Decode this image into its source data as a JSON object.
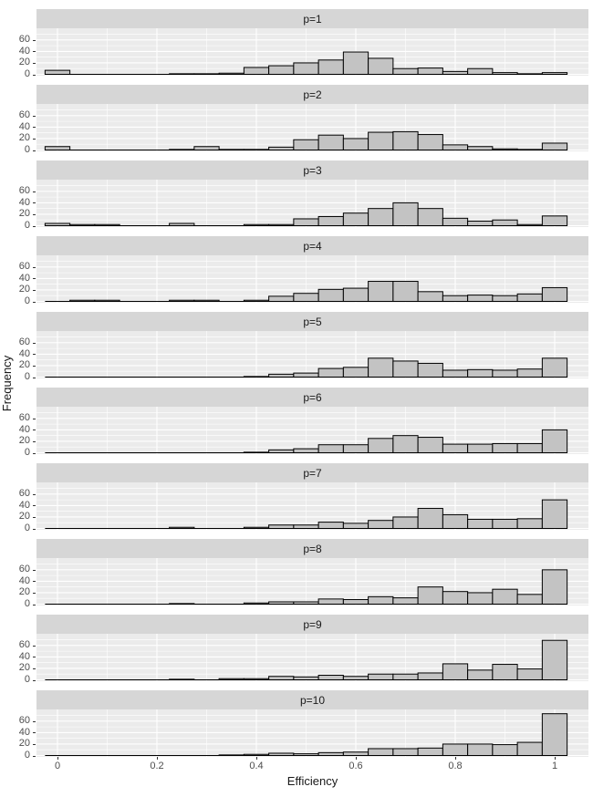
{
  "figure": {
    "title_x": "Efficiency",
    "title_y": "Frequency"
  },
  "axes": {
    "x_ticks": [
      {
        "label": "0",
        "value": 0
      },
      {
        "label": "0.2",
        "value": 0.2
      },
      {
        "label": "0.4",
        "value": 0.4
      },
      {
        "label": "0.6",
        "value": 0.6
      },
      {
        "label": "0.8",
        "value": 0.8
      },
      {
        "label": "1",
        "value": 1
      }
    ],
    "y_ticks": [
      {
        "label": "0",
        "value": 0
      },
      {
        "label": "20",
        "value": 20
      },
      {
        "label": "40",
        "value": 40
      },
      {
        "label": "60",
        "value": 60
      }
    ],
    "y_minor_values": [
      10,
      30,
      50,
      70
    ],
    "x_minor_values": [
      0.1,
      0.3,
      0.5,
      0.7,
      0.9
    ]
  },
  "colors": {
    "panel_background": "#EBEBEB",
    "strip_background": "#D6D6D6",
    "gridline": "#FFFFFF",
    "bar_fill": "#C3C3C3",
    "bar_stroke": "#000000",
    "axis_text": "#4D4D4D",
    "title_text": "#1A1A1A"
  },
  "chart_data": {
    "type": "bar",
    "subtype": "faceted-histogram",
    "xlabel": "Efficiency",
    "ylabel": "Frequency",
    "x_range": [
      -0.025,
      1.025
    ],
    "ylim": [
      0,
      79
    ],
    "bin_width": 0.05,
    "bin_centers": [
      0,
      0.05,
      0.1,
      0.15,
      0.2,
      0.25,
      0.3,
      0.35,
      0.4,
      0.45,
      0.5,
      0.55,
      0.6,
      0.65,
      0.7,
      0.75,
      0.8,
      0.85,
      0.9,
      0.95,
      1.0
    ],
    "facets": [
      {
        "label": "p=1",
        "counts": [
          7,
          0,
          0,
          0,
          0,
          1,
          1,
          2,
          12,
          15,
          20,
          25,
          39,
          28,
          10,
          11,
          5,
          10,
          3,
          1,
          3
        ]
      },
      {
        "label": "p=2",
        "counts": [
          6,
          0,
          0,
          0,
          0,
          1,
          6,
          1,
          1,
          5,
          18,
          26,
          20,
          31,
          32,
          27,
          9,
          6,
          2,
          1,
          12
        ]
      },
      {
        "label": "p=3",
        "counts": [
          4,
          2,
          2,
          0,
          0,
          4,
          0,
          0,
          2,
          2,
          12,
          16,
          22,
          30,
          40,
          30,
          13,
          8,
          10,
          2,
          17
        ]
      },
      {
        "label": "p=4",
        "counts": [
          0,
          2,
          2,
          0,
          0,
          2,
          2,
          0,
          2,
          9,
          14,
          21,
          23,
          35,
          35,
          17,
          10,
          11,
          10,
          13,
          24
        ]
      },
      {
        "label": "p=5",
        "counts": [
          0,
          0,
          0,
          0,
          0,
          0,
          0,
          0,
          1,
          5,
          7,
          15,
          17,
          33,
          28,
          24,
          12,
          13,
          12,
          14,
          33
        ]
      },
      {
        "label": "p=6",
        "counts": [
          0,
          0,
          0,
          0,
          0,
          0,
          0,
          0,
          1,
          5,
          7,
          14,
          14,
          25,
          30,
          27,
          15,
          15,
          16,
          16,
          40
        ]
      },
      {
        "label": "p=7",
        "counts": [
          0,
          0,
          0,
          0,
          0,
          2,
          0,
          0,
          2,
          6,
          6,
          11,
          9,
          14,
          20,
          35,
          24,
          16,
          16,
          17,
          50
        ]
      },
      {
        "label": "p=8",
        "counts": [
          0,
          0,
          0,
          0,
          0,
          1,
          0,
          0,
          2,
          4,
          4,
          9,
          8,
          13,
          11,
          30,
          22,
          20,
          26,
          17,
          60
        ]
      },
      {
        "label": "p=9",
        "counts": [
          0,
          0,
          0,
          0,
          0,
          1,
          0,
          2,
          2,
          6,
          5,
          8,
          6,
          10,
          10,
          12,
          28,
          17,
          27,
          19,
          69
        ]
      },
      {
        "label": "p=10",
        "counts": [
          0,
          0,
          0,
          0,
          0,
          0,
          0,
          1,
          2,
          4,
          3,
          5,
          6,
          12,
          12,
          13,
          20,
          20,
          19,
          23,
          73
        ]
      }
    ]
  }
}
